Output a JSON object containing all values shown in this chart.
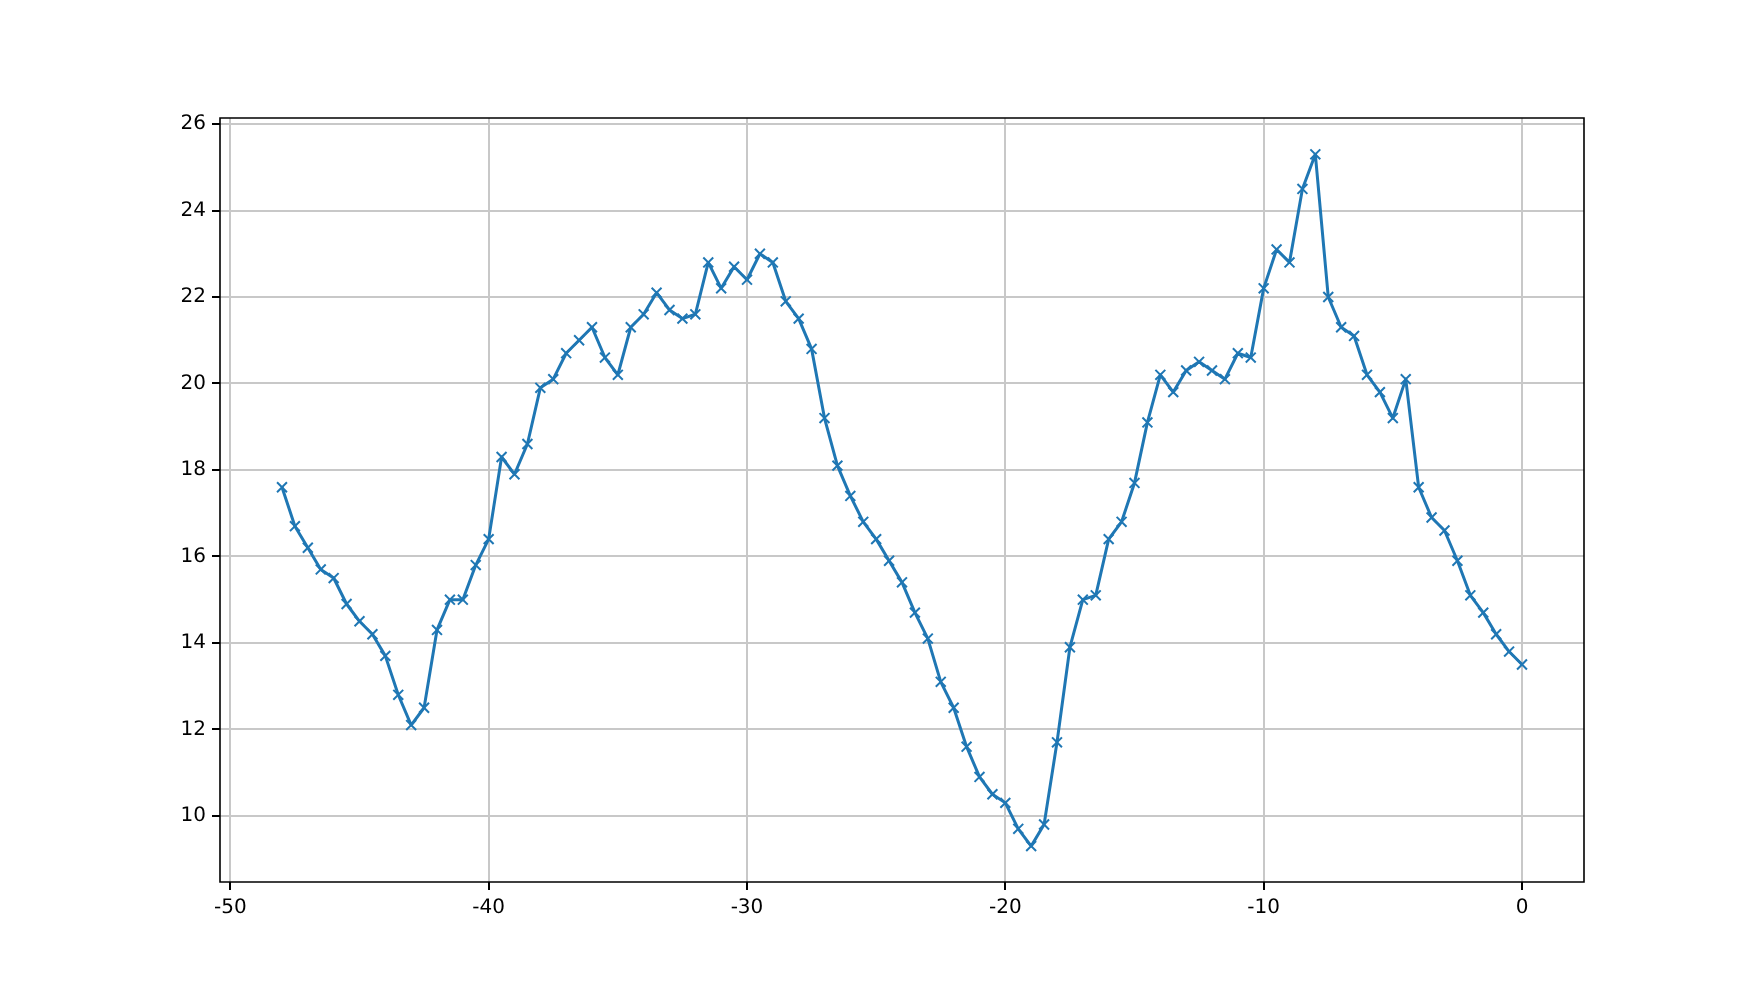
{
  "chart_data": {
    "type": "line",
    "color": "#1f77b4",
    "marker": "cross",
    "grid": true,
    "x": [
      -48,
      -47.5,
      -47,
      -46.5,
      -46,
      -45.5,
      -45,
      -44.5,
      -44,
      -43.5,
      -43,
      -42.5,
      -42,
      -41.5,
      -41,
      -40.5,
      -40,
      -39.5,
      -39,
      -38.5,
      -38,
      -37.5,
      -37,
      -36.5,
      -36,
      -35.5,
      -35,
      -34.5,
      -34,
      -33.5,
      -33,
      -32.5,
      -32,
      -31.5,
      -31,
      -30.5,
      -30,
      -29.5,
      -29,
      -28.5,
      -28,
      -27.5,
      -27,
      -26.5,
      -26,
      -25.5,
      -25,
      -24.5,
      -24,
      -23.5,
      -23,
      -22.5,
      -22,
      -21.5,
      -21,
      -20.5,
      -20,
      -19.5,
      -19,
      -18.5,
      -18,
      -17.5,
      -17,
      -16.5,
      -16,
      -15.5,
      -15,
      -14.5,
      -14,
      -13.5,
      -13,
      -12.5,
      -12,
      -11.5,
      -11,
      -10.5,
      -10,
      -9.5,
      -9,
      -8.5,
      -8,
      -7.5,
      -7,
      -6.5,
      -6,
      -5.5,
      -5,
      -4.5,
      -4,
      -3.5,
      -3,
      -2.5,
      -2,
      -1.5,
      -1,
      -0.5,
      0
    ],
    "values": [
      17.6,
      16.7,
      16.2,
      15.7,
      15.5,
      14.9,
      14.5,
      14.2,
      13.7,
      12.8,
      12.1,
      12.5,
      14.3,
      15.0,
      15.0,
      15.8,
      16.4,
      18.3,
      17.9,
      18.6,
      19.9,
      20.1,
      20.7,
      21.0,
      21.3,
      20.6,
      20.2,
      21.3,
      21.6,
      22.1,
      21.7,
      21.5,
      21.6,
      22.8,
      22.2,
      22.7,
      22.4,
      23.0,
      22.8,
      21.9,
      21.5,
      20.8,
      19.2,
      18.1,
      17.4,
      16.8,
      16.4,
      15.9,
      15.4,
      14.7,
      14.1,
      13.1,
      12.5,
      11.6,
      10.9,
      10.5,
      10.3,
      9.7,
      9.3,
      9.8,
      11.7,
      13.9,
      15.0,
      15.1,
      16.4,
      16.8,
      17.7,
      19.1,
      20.2,
      19.8,
      20.3,
      20.5,
      20.3,
      20.1,
      20.7,
      20.6,
      22.2,
      23.1,
      22.8,
      24.5,
      25.3,
      22.0,
      21.3,
      21.1,
      20.2,
      19.8,
      19.2,
      20.1,
      17.6,
      16.9,
      16.6,
      15.9,
      15.1,
      14.7,
      14.2,
      13.8,
      13.5
    ],
    "xlim": [
      -50.4,
      2.4
    ],
    "xticks": [
      -50,
      -40,
      -30,
      -20,
      -10,
      0
    ],
    "ylim": [
      8.47,
      26.14
    ],
    "yticks": [
      10,
      12,
      14,
      16,
      18,
      20,
      22,
      24,
      26
    ]
  }
}
